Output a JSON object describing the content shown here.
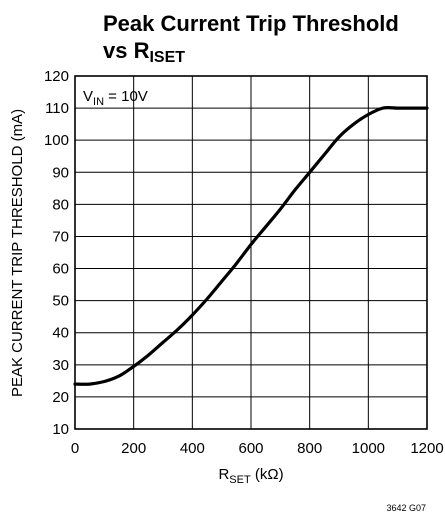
{
  "chart_data": {
    "type": "line",
    "title_line1": "Peak Current Trip Threshold",
    "title_line2_main": "vs R",
    "title_line2_sub": "ISET",
    "xlabel_main": "R",
    "xlabel_sub": "SET",
    "xlabel_unit": " (kΩ)",
    "ylabel": "PEAK CURRENT TRIP THRESHOLD (mA)",
    "annotation_main": "V",
    "annotation_sub": "IN",
    "annotation_rest": " = 10V",
    "figure_id": "3642 G07",
    "xlim": [
      0,
      1200
    ],
    "ylim": [
      10,
      120
    ],
    "xticks": [
      0,
      200,
      400,
      600,
      800,
      1000,
      1200
    ],
    "yticks": [
      10,
      20,
      30,
      40,
      50,
      60,
      70,
      80,
      90,
      100,
      110,
      120
    ],
    "grid": true,
    "series": [
      {
        "x": [
          0,
          50,
          100,
          150,
          200,
          250,
          300,
          350,
          400,
          450,
          500,
          550,
          600,
          650,
          700,
          750,
          800,
          850,
          900,
          950,
          1000,
          1050,
          1100,
          1150,
          1200
        ],
        "y": [
          24,
          24,
          24.8,
          26.5,
          29.5,
          33,
          37,
          41,
          45.5,
          50.5,
          56,
          61.5,
          67.5,
          73,
          78.5,
          84.5,
          90,
          95.5,
          101,
          105,
          108,
          110,
          110,
          110,
          110
        ]
      }
    ]
  }
}
